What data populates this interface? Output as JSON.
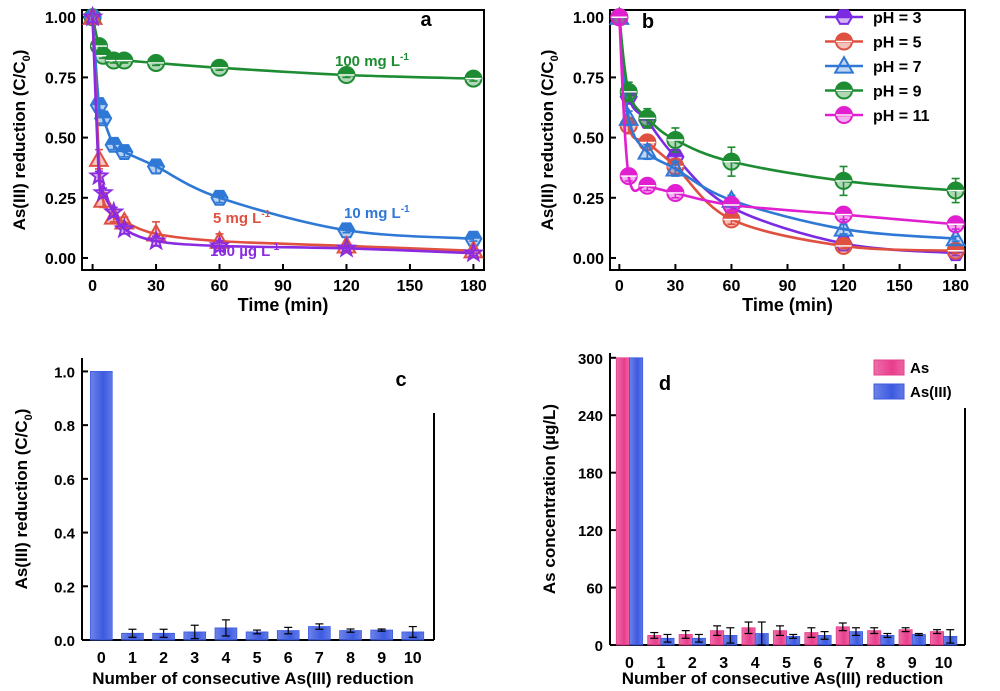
{
  "chart_data": [
    {
      "panel": "a",
      "type": "line",
      "xlabel": "Time (min)",
      "ylabel_main": "As(III) reduction (C/C",
      "ylabel_sub": "0",
      "ylabel_end": ")",
      "xlim": [
        -5,
        185
      ],
      "ylim": [
        -0.05,
        1.03
      ],
      "xticks": [
        0,
        30,
        60,
        90,
        120,
        150,
        180
      ],
      "yticks": [
        0.0,
        0.25,
        0.5,
        0.75,
        1.0
      ],
      "ytick_labels": [
        "0.00",
        "0.25",
        "0.50",
        "0.75",
        "1.00"
      ],
      "series": [
        {
          "name": "100 mg L",
          "sup": "-1",
          "color": "#1e8c32",
          "marker": "circle",
          "x": [
            0,
            3,
            5,
            10,
            15,
            30,
            60,
            120,
            180
          ],
          "y": [
            1.0,
            0.88,
            0.84,
            0.82,
            0.82,
            0.81,
            0.79,
            0.76,
            0.745
          ],
          "err": [
            0,
            0.02,
            0.01,
            0.01,
            0.01,
            0.01,
            0.01,
            0.01,
            0.01
          ]
        },
        {
          "name": "10 mg L",
          "sup": "-1",
          "color": "#2f78d6",
          "marker": "hexagon",
          "x": [
            0,
            3,
            5,
            10,
            15,
            30,
            60,
            120,
            180
          ],
          "y": [
            1.0,
            0.635,
            0.58,
            0.47,
            0.44,
            0.38,
            0.25,
            0.115,
            0.08
          ],
          "err": [
            0,
            0.02,
            0.02,
            0.02,
            0.02,
            0.03,
            0.02,
            0.01,
            0.01
          ]
        },
        {
          "name": "5 mg L",
          "sup": "-1",
          "color": "#e05040",
          "marker": "triangle",
          "x": [
            0,
            3,
            5,
            10,
            15,
            30,
            60,
            120,
            180
          ],
          "y": [
            1.0,
            0.41,
            0.24,
            0.17,
            0.15,
            0.1,
            0.07,
            0.05,
            0.03
          ],
          "err": [
            0,
            0.04,
            0.03,
            0.02,
            0.02,
            0.05,
            0.03,
            0.01,
            0.01
          ]
        },
        {
          "name": "100 µg L",
          "sup": "-1",
          "color": "#8a2be2",
          "marker": "star",
          "x": [
            0,
            3,
            5,
            10,
            15,
            30,
            60,
            120,
            180
          ],
          "y": [
            1.0,
            0.34,
            0.27,
            0.19,
            0.12,
            0.07,
            0.05,
            0.04,
            0.02
          ],
          "err": [
            0,
            0.02,
            0.02,
            0.02,
            0.02,
            0.02,
            0.02,
            0.01,
            0.01
          ]
        }
      ]
    },
    {
      "panel": "b",
      "type": "line",
      "xlabel": "Time (min)",
      "ylabel_main": "As(III) reduction (C/C",
      "ylabel_sub": "0",
      "ylabel_end": ")",
      "xlim": [
        -5,
        185
      ],
      "ylim": [
        -0.05,
        1.03
      ],
      "xticks": [
        0,
        30,
        60,
        90,
        120,
        150,
        180
      ],
      "yticks": [
        0.0,
        0.25,
        0.5,
        0.75,
        1.0
      ],
      "ytick_labels": [
        "0.00",
        "0.25",
        "0.50",
        "0.75",
        "1.00"
      ],
      "legend": "top-right",
      "series": [
        {
          "name": "pH = 3",
          "color": "#7b2be2",
          "marker": "hexagon",
          "x": [
            0,
            5,
            15,
            30,
            60,
            120,
            180
          ],
          "y": [
            1.0,
            0.67,
            0.57,
            0.42,
            0.21,
            0.06,
            0.02
          ],
          "err": [
            0,
            0.03,
            0.03,
            0.03,
            0.02,
            0.01,
            0.01
          ]
        },
        {
          "name": "pH = 5",
          "color": "#e05040",
          "marker": "circle",
          "x": [
            0,
            5,
            15,
            30,
            60,
            120,
            180
          ],
          "y": [
            1.0,
            0.55,
            0.48,
            0.38,
            0.16,
            0.05,
            0.03
          ],
          "err": [
            0,
            0.03,
            0.03,
            0.03,
            0.02,
            0.01,
            0.01
          ]
        },
        {
          "name": "pH = 7",
          "color": "#2f78d6",
          "marker": "triangle",
          "x": [
            0,
            5,
            15,
            30,
            60,
            120,
            180
          ],
          "y": [
            1.0,
            0.58,
            0.44,
            0.37,
            0.24,
            0.12,
            0.08
          ],
          "err": [
            0,
            0.03,
            0.03,
            0.03,
            0.02,
            0.02,
            0.01
          ]
        },
        {
          "name": "pH = 9",
          "color": "#1e8c32",
          "marker": "circle",
          "x": [
            0,
            5,
            15,
            30,
            60,
            120,
            180
          ],
          "y": [
            1.0,
            0.69,
            0.58,
            0.49,
            0.4,
            0.32,
            0.28
          ],
          "err": [
            0,
            0.04,
            0.04,
            0.05,
            0.06,
            0.06,
            0.05
          ]
        },
        {
          "name": "pH = 11",
          "color": "#e020d0",
          "marker": "circle",
          "x": [
            0,
            5,
            15,
            30,
            60,
            120,
            180
          ],
          "y": [
            1.0,
            0.34,
            0.3,
            0.27,
            0.22,
            0.18,
            0.14
          ],
          "err": [
            0,
            0.02,
            0.02,
            0.02,
            0.02,
            0.02,
            0.02
          ]
        }
      ]
    },
    {
      "panel": "c",
      "type": "bar",
      "xlabel": "Number of consecutive As(III) reduction",
      "ylabel_main": "As(III) reduction (C/C",
      "ylabel_sub": "0",
      "ylabel_end": ")",
      "ylim": [
        0,
        1.05
      ],
      "yticks": [
        0.0,
        0.2,
        0.4,
        0.6,
        0.8,
        1.0
      ],
      "ytick_labels": [
        "0.0",
        "0.2",
        "0.4",
        "0.6",
        "0.8",
        "1.0"
      ],
      "categories": [
        "0",
        "1",
        "2",
        "3",
        "4",
        "5",
        "6",
        "7",
        "8",
        "9",
        "10"
      ],
      "series": [
        {
          "name": "As(III)",
          "color": "#3c5ae0",
          "values": [
            1.0,
            0.025,
            0.025,
            0.03,
            0.045,
            0.03,
            0.035,
            0.05,
            0.035,
            0.037,
            0.03
          ],
          "err": [
            0,
            0.015,
            0.015,
            0.025,
            0.03,
            0.007,
            0.012,
            0.01,
            0.006,
            0.004,
            0.02
          ]
        }
      ]
    },
    {
      "panel": "d",
      "type": "bar",
      "xlabel": "Number of consecutive As(III) reduction",
      "ylabel_main": "As concentration (µg/L)",
      "ylabel_sub": "",
      "ylabel_end": "",
      "ylim": [
        0,
        305
      ],
      "yticks": [
        0,
        60,
        120,
        180,
        240,
        300
      ],
      "ytick_labels": [
        "0",
        "60",
        "120",
        "180",
        "240",
        "300"
      ],
      "categories": [
        "0",
        "1",
        "2",
        "3",
        "4",
        "5",
        "6",
        "7",
        "8",
        "9",
        "10"
      ],
      "legend": "top-right",
      "series": [
        {
          "name": "As",
          "color": "#e83e8c",
          "values": [
            300,
            10,
            11,
            15,
            18,
            15,
            13,
            19,
            15,
            16,
            14
          ],
          "err": [
            0,
            3,
            4,
            5,
            6,
            5,
            5,
            4,
            3,
            2,
            2
          ]
        },
        {
          "name": "As(III)",
          "color": "#3c5ae0",
          "values": [
            300,
            7,
            7,
            10,
            12,
            9,
            10,
            14,
            10,
            11,
            9
          ],
          "err": [
            0,
            4,
            4,
            8,
            12,
            2,
            4,
            4,
            2,
            1,
            7
          ]
        }
      ]
    }
  ]
}
